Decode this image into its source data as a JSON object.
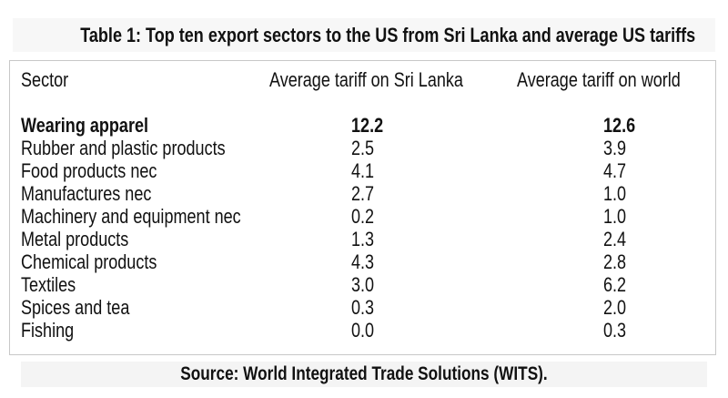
{
  "title": "Table 1: Top ten export sectors to the US from Sri Lanka and average US tariffs",
  "columns": [
    "Sector",
    "Average tariff on Sri Lanka",
    "Average tariff on world"
  ],
  "rows": [
    {
      "sector": "Wearing apparel",
      "sri_lanka": "12.2",
      "world": "12.6"
    },
    {
      "sector": "Rubber and plastic products",
      "sri_lanka": "2.5",
      "world": "3.9"
    },
    {
      "sector": "Food products nec",
      "sri_lanka": "4.1",
      "world": "4.7"
    },
    {
      "sector": "Manufactures nec",
      "sri_lanka": "2.7",
      "world": "1.0"
    },
    {
      "sector": "Machinery and equipment nec",
      "sri_lanka": "0.2",
      "world": "1.0"
    },
    {
      "sector": "Metal products",
      "sri_lanka": "1.3",
      "world": "2.4"
    },
    {
      "sector": "Chemical products",
      "sri_lanka": "4.3",
      "world": "2.8"
    },
    {
      "sector": "Textiles",
      "sri_lanka": "3.0",
      "world": "6.2"
    },
    {
      "sector": "Spices and tea",
      "sri_lanka": "0.3",
      "world": "2.0"
    },
    {
      "sector": "Fishing",
      "sri_lanka": "0.0",
      "world": "0.3"
    }
  ],
  "source": "Source: World Integrated Trade Solutions (WITS)."
}
